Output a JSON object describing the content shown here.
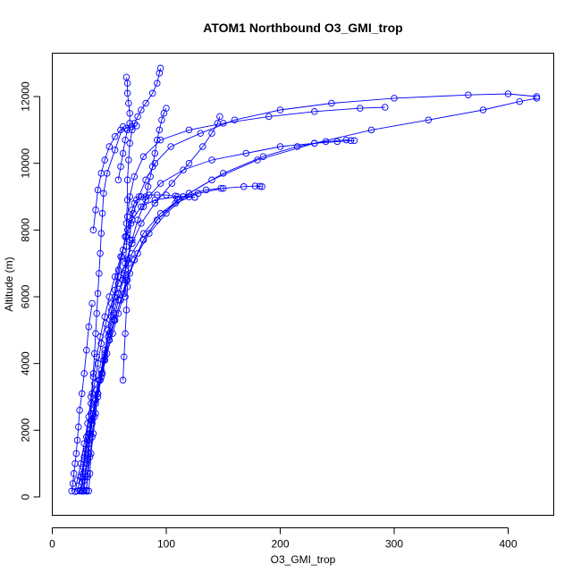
{
  "chart_data": {
    "type": "scatter",
    "title": "ATOM1 Northbound O3_GMI_trop",
    "xlabel": "O3_GMI_trop",
    "ylabel": "Altitude (m)",
    "xlim": [
      0,
      440
    ],
    "ylim": [
      -550,
      13300
    ],
    "x_ticks": [
      0,
      100,
      200,
      300,
      400
    ],
    "y_ticks": [
      0,
      2000,
      4000,
      6000,
      8000,
      10000,
      12000
    ],
    "grid": false,
    "legend": "none",
    "marker": "open-circle",
    "connect_points": true,
    "color": "#0000ff",
    "series": [
      {
        "x": [
          24,
          26,
          27,
          30,
          33,
          36,
          39,
          43,
          46,
          49,
          52,
          55,
          58,
          62,
          66,
          71,
          76,
          82,
          90,
          104,
          130,
          160,
          200,
          245,
          300,
          365,
          400,
          425
        ],
        "y": [
          180,
          450,
          900,
          1400,
          2000,
          2600,
          3200,
          3800,
          4400,
          5000,
          5600,
          6200,
          6800,
          7400,
          8000,
          8500,
          9000,
          9500,
          10000,
          10500,
          10900,
          11300,
          11600,
          11800,
          11950,
          12050,
          12080,
          12000
        ]
      },
      {
        "x": [
          27,
          28,
          30,
          32,
          35,
          38,
          42,
          46,
          50,
          55,
          60,
          65,
          72,
          80,
          92,
          110,
          140,
          180,
          230,
          280,
          330,
          378,
          410,
          425
        ],
        "y": [
          170,
          500,
          1000,
          1600,
          2200,
          2800,
          3500,
          4100,
          4700,
          5300,
          5900,
          6500,
          7100,
          7700,
          8300,
          8900,
          9500,
          10100,
          10600,
          11000,
          11300,
          11600,
          11850,
          11950
        ]
      },
      {
        "x": [
          30,
          31,
          33,
          35,
          37,
          40,
          43,
          46,
          49,
          52,
          55,
          58,
          61,
          64,
          66,
          68,
          72,
          80,
          95,
          120,
          150,
          190,
          230,
          270,
          292
        ],
        "y": [
          200,
          600,
          1200,
          1800,
          2400,
          3000,
          3600,
          4200,
          4800,
          5400,
          6000,
          6600,
          7200,
          7800,
          8400,
          9000,
          9600,
          10200,
          10700,
          11000,
          11200,
          11400,
          11550,
          11650,
          11680
        ]
      },
      {
        "x": [
          22,
          25,
          28,
          31,
          34,
          38,
          42,
          46,
          50,
          54,
          58,
          62,
          66,
          70,
          75,
          82,
          95,
          115,
          140,
          170,
          200,
          230,
          250,
          265
        ],
        "y": [
          180,
          600,
          1100,
          1700,
          2300,
          2900,
          3500,
          4100,
          4700,
          5300,
          5900,
          6500,
          7100,
          7700,
          8300,
          8900,
          9400,
          9800,
          10100,
          10300,
          10500,
          10600,
          10650,
          10680
        ]
      },
      {
        "x": [
          25,
          27,
          29,
          32,
          36,
          40,
          44,
          48,
          53,
          58,
          63,
          68,
          75,
          85,
          100,
          120,
          150,
          185,
          215,
          240,
          258,
          262
        ],
        "y": [
          200,
          700,
          1300,
          1900,
          2500,
          3100,
          3700,
          4300,
          4900,
          5500,
          6100,
          6700,
          7300,
          7900,
          8500,
          9100,
          9700,
          10200,
          10500,
          10650,
          10700,
          10680
        ]
      },
      {
        "x": [
          28,
          29,
          31,
          33,
          35,
          38,
          41,
          45,
          50,
          55,
          60,
          66,
          72,
          80,
          92,
          108,
          128,
          150,
          168,
          178,
          182,
          184
        ],
        "y": [
          190,
          600,
          1100,
          1700,
          2300,
          2900,
          3500,
          4100,
          4700,
          5300,
          5900,
          6500,
          7100,
          7700,
          8300,
          8800,
          9100,
          9250,
          9300,
          9320,
          9310,
          9300
        ]
      },
      {
        "x": [
          32,
          33,
          34,
          36,
          38,
          40,
          43,
          46,
          50,
          54,
          58,
          63,
          70,
          80,
          95,
          115,
          135,
          148
        ],
        "y": [
          180,
          700,
          1300,
          1900,
          2500,
          3100,
          3700,
          4300,
          4900,
          5500,
          6100,
          6700,
          7300,
          7900,
          8500,
          9000,
          9200,
          9250
        ]
      },
      {
        "x": [
          20,
          22,
          25,
          28,
          31,
          34,
          37,
          40,
          43,
          47,
          52,
          58,
          64,
          70,
          78,
          90,
          105,
          120,
          132,
          140,
          145,
          147
        ],
        "y": [
          160,
          500,
          1000,
          1600,
          2200,
          2800,
          3400,
          4000,
          4600,
          5200,
          5800,
          6400,
          7000,
          7600,
          8200,
          8800,
          9400,
          10000,
          10500,
          10900,
          11200,
          11400
        ]
      },
      {
        "x": [
          26,
          27,
          28,
          30,
          32,
          34,
          36,
          39,
          42,
          46,
          50,
          55,
          60,
          65,
          70,
          78,
          90,
          110,
          125
        ],
        "y": [
          170,
          600,
          1200,
          1800,
          2400,
          3000,
          3600,
          4200,
          4800,
          5400,
          6000,
          6600,
          7200,
          7800,
          8300,
          8700,
          8900,
          9000,
          8980
        ]
      },
      {
        "x": [
          30,
          31,
          32,
          33,
          34,
          35,
          36,
          37,
          38,
          39,
          40,
          41,
          42,
          43,
          44,
          45,
          48,
          55,
          62
        ],
        "y": [
          170,
          700,
          1300,
          1900,
          2500,
          3100,
          3700,
          4300,
          4900,
          5500,
          6100,
          6700,
          7300,
          7900,
          8500,
          9100,
          9700,
          10400,
          11100
        ]
      },
      {
        "x": [
          62,
          63,
          64,
          65,
          66,
          67,
          68,
          69,
          70,
          72,
          74,
          78,
          85,
          92,
          100,
          108,
          115,
          120,
          125
        ],
        "y": [
          3500,
          4200,
          4900,
          5600,
          6300,
          7000,
          7700,
          8200,
          8600,
          8800,
          8900,
          9000,
          9050,
          9050,
          9050,
          9020,
          9000,
          8990,
          8980
        ]
      },
      {
        "x": [
          64,
          64,
          65,
          65,
          66,
          66,
          67,
          68,
          70,
          72,
          75,
          78,
          82,
          88,
          92,
          94,
          95
        ],
        "y": [
          6000,
          6800,
          7500,
          8200,
          8900,
          9500,
          10100,
          10600,
          11000,
          11200,
          11400,
          11600,
          11800,
          12100,
          12400,
          12700,
          12850
        ]
      },
      {
        "x": [
          17,
          18,
          19,
          20,
          21,
          22,
          23,
          24,
          26,
          28,
          30,
          32,
          35
        ],
        "y": [
          180,
          400,
          700,
          1000,
          1300,
          1700,
          2100,
          2600,
          3100,
          3700,
          4400,
          5100,
          5800
        ]
      },
      {
        "x": [
          36,
          38,
          40,
          43,
          46,
          50,
          55,
          60,
          65,
          70,
          74
        ],
        "y": [
          8000,
          8600,
          9200,
          9700,
          10100,
          10500,
          10800,
          11000,
          11050,
          11100,
          11120
        ]
      },
      {
        "x": [
          80,
          82,
          84,
          86,
          88,
          90,
          92,
          94,
          96,
          98,
          100
        ],
        "y": [
          8700,
          9000,
          9300,
          9600,
          9900,
          10300,
          10700,
          11000,
          11300,
          11500,
          11650
        ]
      },
      {
        "x": [
          58,
          60,
          62,
          64,
          66,
          68,
          68,
          67,
          66,
          66,
          65
        ],
        "y": [
          9500,
          9900,
          10300,
          10700,
          11000,
          11200,
          11500,
          11800,
          12100,
          12400,
          12580
        ]
      }
    ]
  }
}
